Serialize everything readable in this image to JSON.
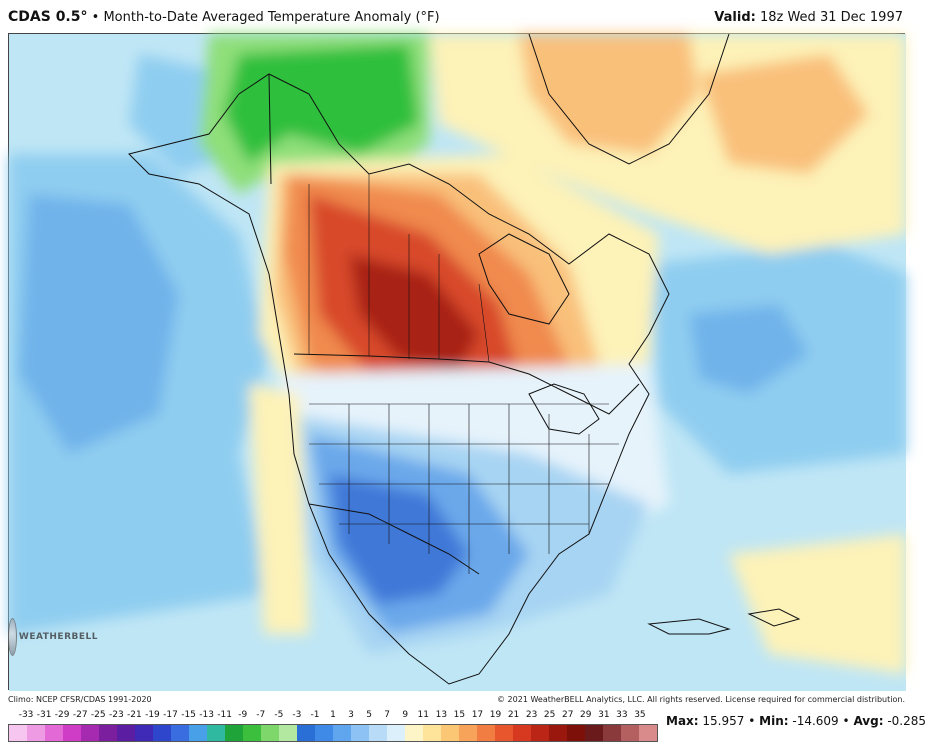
{
  "header": {
    "product": "CDAS 0.5°",
    "separator": "•",
    "title": "Month-to-Date Averaged Temperature Anomaly (°F)",
    "valid_label": "Valid:",
    "valid_value": "18z Wed 31 Dec 1997"
  },
  "footer": {
    "climo": "Climo: NCEP CFSR/CDAS 1991-2020",
    "copyright": "© 2021 WeatherBELL Analytics, LLC. All rights reserved. License required for commercial distribution."
  },
  "watermark": {
    "brand": "WEATHERBELL"
  },
  "stats": {
    "max_label": "Max:",
    "max_value": "15.957",
    "min_label": "Min:",
    "min_value": "-14.609",
    "avg_label": "Avg:",
    "avg_value": "-0.285",
    "separator": "•"
  },
  "legend": {
    "ticks": [
      "-33",
      "-31",
      "-29",
      "-27",
      "-25",
      "-23",
      "-21",
      "-19",
      "-17",
      "-15",
      "-13",
      "-11",
      "-9",
      "-7",
      "-5",
      "-3",
      "-1",
      "1",
      "3",
      "5",
      "7",
      "9",
      "11",
      "13",
      "15",
      "17",
      "19",
      "21",
      "23",
      "25",
      "27",
      "29",
      "31",
      "33",
      "35"
    ],
    "colors": [
      "#f7c6f0",
      "#ef9be3",
      "#e36ad6",
      "#cf3dc6",
      "#a52ab0",
      "#7c1f9e",
      "#5b1ea3",
      "#3f2ab8",
      "#2e46cc",
      "#3a6ee0",
      "#47a0e8",
      "#2fb9a0",
      "#1fa43a",
      "#3cbf3c",
      "#7ed76b",
      "#b2e8a0",
      "#2a6fd6",
      "#3f8ae6",
      "#5fa6ef",
      "#8dc3f4",
      "#b8dcf8",
      "#dcf0fb",
      "#fdf4c8",
      "#fde49a",
      "#fbc775",
      "#f7a359",
      "#f27d43",
      "#e8562e",
      "#d6391f",
      "#bb2515",
      "#9a170d",
      "#7d1009",
      "#6a1a1a",
      "#8a3a3a",
      "#b56060",
      "#d98b8b"
    ]
  },
  "map": {
    "colors": {
      "ocean_neutral": "#bfe6f5",
      "ocean_cool": "#8fcdf0",
      "ocean_cooler": "#6fb3ea",
      "warm_light": "#fdf2b8",
      "warm_orange": "#f9c07a",
      "warm_strong": "#f08a4e",
      "warm_red": "#d8482a",
      "warm_dark": "#a82414",
      "cold_light": "#a7d4f3",
      "cold_mid": "#6aa8ea",
      "cold_strong": "#3f78d8",
      "green_light": "#8fdf7a",
      "green_dark": "#2fbf3c",
      "neutral_land": "#e6f3fb",
      "borders": "#111111"
    }
  }
}
